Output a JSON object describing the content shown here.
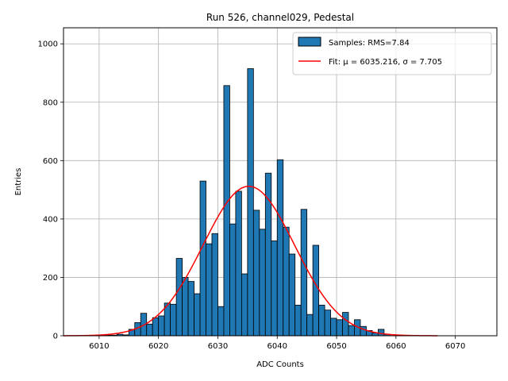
{
  "chart_data": {
    "type": "bar",
    "title": "Run 526, channel029, Pedestal",
    "xlabel": "ADC Counts",
    "ylabel": "Entries",
    "xlim": [
      6004,
      6077
    ],
    "ylim": [
      0,
      1055
    ],
    "xticks": [
      6010,
      6020,
      6030,
      6040,
      6050,
      6060,
      6070
    ],
    "yticks": [
      0,
      200,
      400,
      600,
      800,
      1000
    ],
    "grid": true,
    "legend_position": "top-right",
    "histogram": {
      "name": "Samples: RMS=7.84",
      "color": "#1f77b4",
      "edge_color": "#000000",
      "bin_edges": [
        6011,
        6012,
        6013,
        6014,
        6015,
        6016,
        6017,
        6018,
        6019,
        6020,
        6021,
        6022,
        6023,
        6024,
        6025,
        6026,
        6027,
        6028,
        6029,
        6030,
        6031,
        6032,
        6033,
        6034,
        6035,
        6036,
        6037,
        6038,
        6039,
        6040,
        6041,
        6042,
        6043,
        6044,
        6045,
        6046,
        6047,
        6048,
        6049,
        6050,
        6051,
        6052,
        6053,
        6054,
        6055,
        6056,
        6057,
        6058,
        6059
      ],
      "counts": [
        2,
        2,
        5,
        3,
        22,
        45,
        77,
        40,
        62,
        68,
        112,
        108,
        265,
        200,
        186,
        144,
        530,
        315,
        350,
        100,
        857,
        383,
        495,
        212,
        915,
        430,
        365,
        557,
        325,
        603,
        372,
        280,
        105,
        433,
        73,
        310,
        105,
        88,
        60,
        55,
        80,
        35,
        55,
        32,
        18,
        10,
        22,
        5
      ]
    },
    "fit": {
      "name": "Fit: μ = 6035.216, σ = 7.705",
      "color": "#ff0000",
      "mu": 6035.216,
      "sigma": 7.705,
      "amplitude": 512,
      "x_range": [
        6004,
        6067
      ]
    }
  }
}
